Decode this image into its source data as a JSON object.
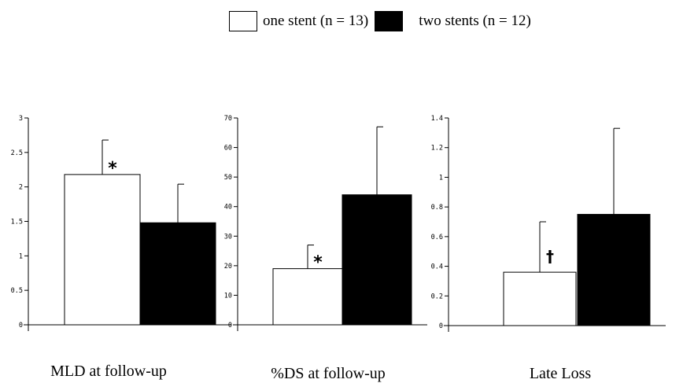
{
  "legend": {
    "series_0": "one stent (n = 13)",
    "series_1": "two stents (n = 12)"
  },
  "colors": {
    "one_stent": "#ffffff",
    "two_stents": "#000000",
    "axis": "#000000"
  },
  "chart_data": [
    {
      "type": "bar",
      "xlabel": "MLD at follow-up",
      "ylim": [
        0,
        3
      ],
      "yticks": [
        "0",
        "0.5",
        "1",
        "1.5",
        "2",
        "2.5",
        "3"
      ],
      "series": [
        {
          "name": "one stent (n = 13)",
          "value": 2.18,
          "error": 0.5,
          "marker": "*"
        },
        {
          "name": "two stents (n = 12)",
          "value": 1.48,
          "error": 0.56,
          "marker": ""
        }
      ]
    },
    {
      "type": "bar",
      "xlabel": "%DS at follow-up",
      "ylim": [
        0,
        70
      ],
      "yticks": [
        "0",
        "10",
        "20",
        "30",
        "40",
        "50",
        "60",
        "70"
      ],
      "series": [
        {
          "name": "one stent (n = 13)",
          "value": 19,
          "error": 8,
          "marker": "*"
        },
        {
          "name": "two stents (n = 12)",
          "value": 44,
          "error": 23,
          "marker": ""
        }
      ]
    },
    {
      "type": "bar",
      "xlabel": "Late Loss",
      "ylim": [
        0,
        1.4
      ],
      "yticks": [
        "0",
        "0.2",
        "0.4",
        "0.6",
        "0.8",
        "1",
        "1.2",
        "1.4"
      ],
      "series": [
        {
          "name": "one stent (n = 13)",
          "value": 0.36,
          "error": 0.34,
          "marker": "†"
        },
        {
          "name": "two stents (n = 12)",
          "value": 0.75,
          "error": 0.58,
          "marker": ""
        }
      ]
    }
  ]
}
